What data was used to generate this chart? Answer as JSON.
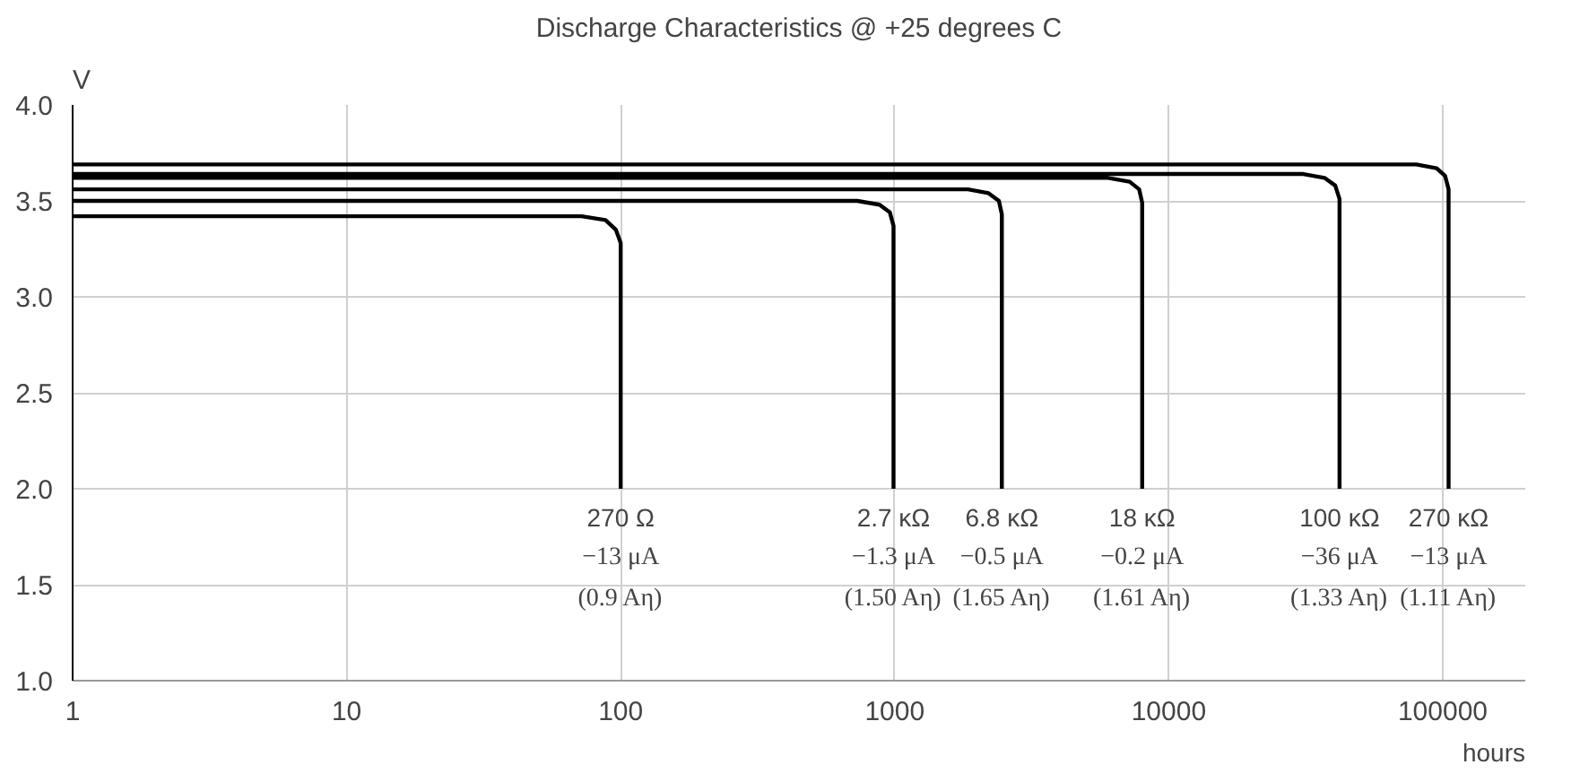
{
  "chart_data": {
    "type": "line",
    "title": "Discharge Characteristics @ +25 degrees C",
    "xlabel": "hours",
    "ylabel": "V",
    "log": "x",
    "xlim": [
      1,
      200000
    ],
    "xticks": [
      1,
      10,
      100,
      1000,
      10000,
      100000
    ],
    "ylim": [
      1.0,
      4.0
    ],
    "yticks": [
      {
        "value": 1.0,
        "label": "1.0"
      },
      {
        "value": 1.5,
        "label": "1.5"
      },
      {
        "value": 2.0,
        "label": "2.0"
      },
      {
        "value": 2.5,
        "label": "2.5"
      },
      {
        "value": 3.0,
        "label": "3.0"
      },
      {
        "value": 3.5,
        "label": "3.5"
      },
      {
        "value": 4.0,
        "label": "4.0"
      }
    ],
    "grid": true,
    "marker": "none",
    "line_style": "solid",
    "series": [
      {
        "color": "#000000",
        "x": [
          1,
          72,
          88,
          96,
          100,
          100
        ],
        "values": [
          3.42,
          3.42,
          3.4,
          3.35,
          3.28,
          2.0
        ]
      },
      {
        "color": "#000000",
        "x": [
          1,
          730,
          880,
          960,
          990,
          990
        ],
        "values": [
          3.5,
          3.5,
          3.48,
          3.44,
          3.37,
          2.0
        ]
      },
      {
        "color": "#000000",
        "x": [
          1,
          1850,
          2200,
          2400,
          2460,
          2460
        ],
        "values": [
          3.56,
          3.56,
          3.54,
          3.5,
          3.43,
          2.0
        ]
      },
      {
        "color": "#000000",
        "x": [
          1,
          6000,
          7200,
          7800,
          8000,
          8000
        ],
        "values": [
          3.62,
          3.62,
          3.6,
          3.56,
          3.49,
          2.0
        ]
      },
      {
        "color": "#000000",
        "x": [
          1,
          31000,
          37000,
          40500,
          42000,
          42000
        ],
        "values": [
          3.64,
          3.64,
          3.62,
          3.58,
          3.51,
          2.0
        ]
      },
      {
        "color": "#000000",
        "x": [
          1,
          80000,
          95000,
          102000,
          105000,
          105000
        ],
        "values": [
          3.69,
          3.69,
          3.67,
          3.63,
          3.56,
          2.0
        ]
      }
    ],
    "annotations": [
      {
        "text": "270 Ω\n−13 μA\n(0.9 Aη)",
        "x": 100,
        "y": 2.0
      },
      {
        "text": "2.7 κΩ\n−1.3 μA\n(1.50 Aη)",
        "x": 990,
        "y": 2.0
      },
      {
        "text": "6.8 κΩ\n−0.5 μA\n(1.65 Aη)",
        "x": 2460,
        "y": 2.0
      },
      {
        "text": "18 κΩ\n−0.2 μA\n(1.61 Aη)",
        "x": 8000,
        "y": 2.0
      },
      {
        "text": "100 κΩ\n−36 μA\n(1.33 Aη)",
        "x": 42000,
        "y": 2.0
      },
      {
        "text": "270 κΩ\n−13 μA\n(1.11 Aη)",
        "x": 105000,
        "y": 2.0
      }
    ]
  }
}
